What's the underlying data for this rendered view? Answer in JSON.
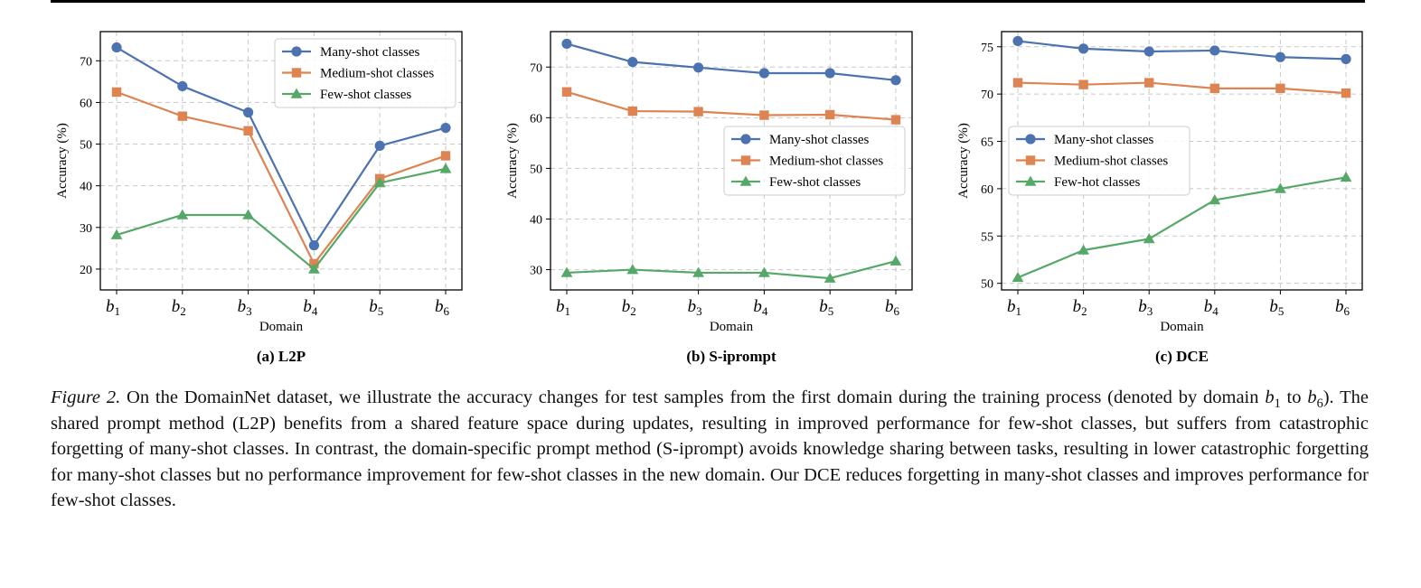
{
  "caption": {
    "label": "Figure 2.",
    "part1": "On the DomainNet dataset, we illustrate the accuracy changes for test samples from the first domain during the training process (denoted by domain ",
    "from_base": "b",
    "from_sub": "1",
    "mid": " to ",
    "to_base": "b",
    "to_sub": "6",
    "part2": "). The shared prompt method (L2P) benefits from a shared feature space during updates, resulting in improved performance for few-shot classes, but suffers from catastrophic forgetting of many-shot classes. In contrast, the domain-specific prompt method (S-iprompt) avoids knowledge sharing between tasks, resulting in lower catastrophic forgetting for many-shot classes but no performance improvement for few-shot classes in the new domain. Our DCE reduces forgetting in many-shot classes and improves performance for few-shot classes."
  },
  "colors": {
    "many": "#4c72b0",
    "medium": "#dd8452",
    "few": "#55a868",
    "grid": "#c8c8c8"
  },
  "chart_data": [
    {
      "type": "line",
      "subtitle": "(a) L2P",
      "xlabel": "Domain",
      "ylabel": "Accuracy (%)",
      "categories": [
        "b1",
        "b2",
        "b3",
        "b4",
        "b5",
        "b6"
      ],
      "ylim": [
        15,
        77
      ],
      "yticks": [
        20,
        30,
        40,
        50,
        60,
        70
      ],
      "grid": true,
      "legend_position": "top-right",
      "series": [
        {
          "name": "Many-shot classes",
          "marker": "circle",
          "values": [
            73.2,
            63.9,
            57.6,
            25.7,
            49.6,
            53.9
          ]
        },
        {
          "name": "Medium-shot classes",
          "marker": "square",
          "values": [
            62.5,
            56.7,
            53.2,
            21.3,
            41.7,
            47.2
          ]
        },
        {
          "name": "Few-shot classes",
          "marker": "triangle",
          "values": [
            28.2,
            33.0,
            33.0,
            20.0,
            40.7,
            44.1
          ]
        }
      ]
    },
    {
      "type": "line",
      "subtitle": "(b) S-iprompt",
      "xlabel": "Domain",
      "ylabel": "Accuracy (%)",
      "categories": [
        "b1",
        "b2",
        "b3",
        "b4",
        "b5",
        "b6"
      ],
      "ylim": [
        26,
        77
      ],
      "yticks": [
        30,
        40,
        50,
        60,
        70
      ],
      "grid": true,
      "legend_position": "center-right",
      "series": [
        {
          "name": "Many-shot classes",
          "marker": "circle",
          "values": [
            74.6,
            71.0,
            69.9,
            68.8,
            68.8,
            67.4
          ]
        },
        {
          "name": "Medium-shot classes",
          "marker": "square",
          "values": [
            65.1,
            61.3,
            61.2,
            60.5,
            60.6,
            59.6
          ]
        },
        {
          "name": "Few-shot classes",
          "marker": "triangle",
          "values": [
            29.4,
            30.0,
            29.4,
            29.4,
            28.3,
            31.7
          ]
        }
      ]
    },
    {
      "type": "line",
      "subtitle": "(c) DCE",
      "xlabel": "Domain",
      "ylabel": "Accuracy (%)",
      "categories": [
        "b1",
        "b2",
        "b3",
        "b4",
        "b5",
        "b6"
      ],
      "ylim": [
        49.3,
        76.6
      ],
      "yticks": [
        50,
        55,
        60,
        65,
        70,
        75
      ],
      "grid": true,
      "legend_position": "center-left",
      "series": [
        {
          "name": "Many-shot classes",
          "marker": "circle",
          "values": [
            75.6,
            74.8,
            74.5,
            74.6,
            73.9,
            73.7
          ]
        },
        {
          "name": "Medium-shot classes",
          "marker": "square",
          "values": [
            71.2,
            71.0,
            71.2,
            70.6,
            70.6,
            70.1
          ]
        },
        {
          "name": "Few-hot classes",
          "marker": "triangle",
          "values": [
            50.6,
            53.5,
            54.7,
            58.8,
            60.0,
            61.2
          ]
        }
      ]
    }
  ]
}
